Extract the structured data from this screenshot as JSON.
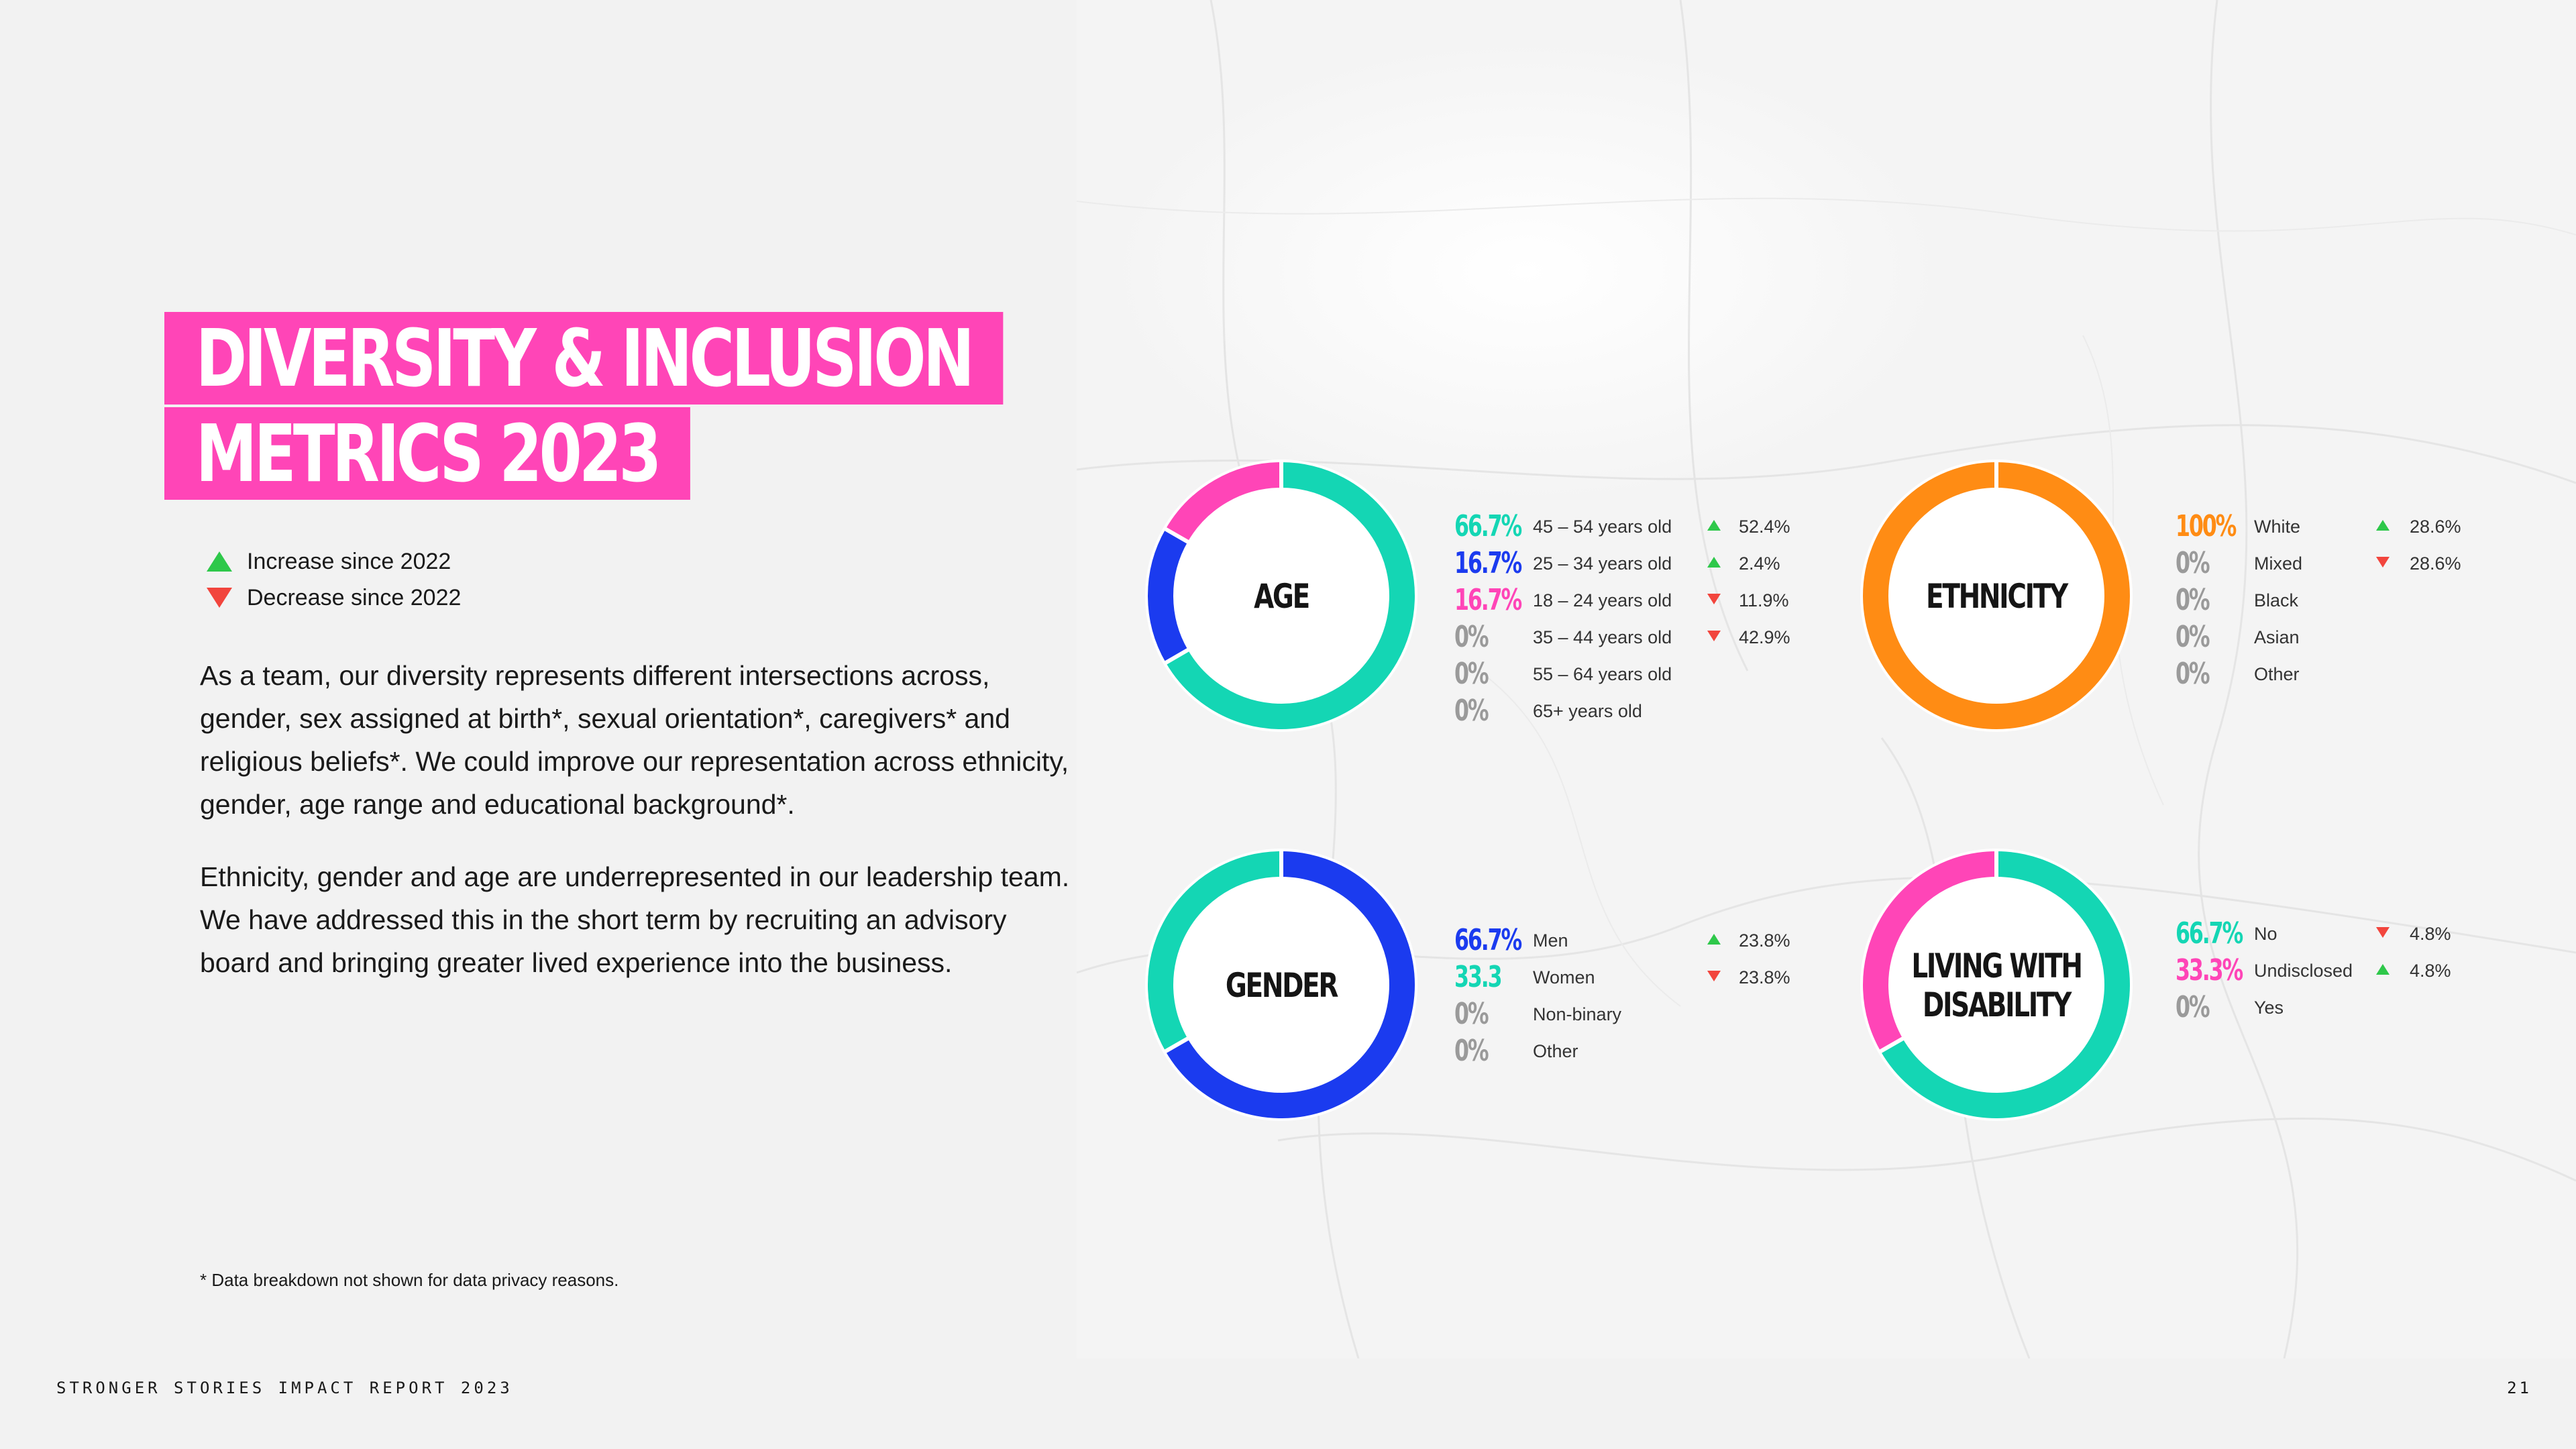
{
  "title": {
    "line1": "DIVERSITY & INCLUSION",
    "line2": "METRICS 2023"
  },
  "legend": {
    "increase": "Increase since 2022",
    "decrease": "Decrease since 2022"
  },
  "paragraphs": {
    "p1": "As a team, our diversity represents different intersections across, gender, sex assigned at birth*, sexual orientation*, caregivers* and religious beliefs*. We could improve our representation across ethnicity, gender, age range and educational background*.",
    "p2": "Ethnicity, gender and age are underrepresented in our leadership team. We have addressed this in the short term by recruiting an advisory board and bringing greater lived experience into the business."
  },
  "footnote": "* Data breakdown not shown for data privacy reasons.",
  "footer": {
    "left": "STRONGER STORIES IMPACT REPORT 2023",
    "page": "21"
  },
  "colors": {
    "teal": "#14d6b4",
    "blue": "#1b3bef",
    "pink": "#ff45b7",
    "orange": "#ff8c14",
    "grey": "#9a9a9a",
    "up": "#2ec84a",
    "down": "#f2453d"
  },
  "chart_data": [
    {
      "type": "pie",
      "center_label": [
        "AGE"
      ],
      "slices": [
        {
          "label": "45 – 54 years old",
          "display": "66.7%",
          "value": 66.7,
          "color": "#14d6b4",
          "change": "52.4%",
          "direction": "up"
        },
        {
          "label": "25 – 34 years old",
          "display": "16.7%",
          "value": 16.7,
          "color": "#1b3bef",
          "change": "2.4%",
          "direction": "up"
        },
        {
          "label": "18 – 24 years old",
          "display": "16.7%",
          "value": 16.7,
          "color": "#ff45b7",
          "change": "11.9%",
          "direction": "down"
        },
        {
          "label": "35 – 44 years old",
          "display": "0%",
          "value": 0,
          "color": "#9a9a9a",
          "change": "42.9%",
          "direction": "down"
        },
        {
          "label": "55 – 64 years old",
          "display": "0%",
          "value": 0,
          "color": "#9a9a9a",
          "change": "",
          "direction": ""
        },
        {
          "label": "65+ years old",
          "display": "0%",
          "value": 0,
          "color": "#9a9a9a",
          "change": "",
          "direction": ""
        }
      ]
    },
    {
      "type": "pie",
      "center_label": [
        "ETHNICITY"
      ],
      "slices": [
        {
          "label": "White",
          "display": "100%",
          "value": 100,
          "color": "#ff8c14",
          "change": "28.6%",
          "direction": "up"
        },
        {
          "label": "Mixed",
          "display": "0%",
          "value": 0,
          "color": "#9a9a9a",
          "change": "28.6%",
          "direction": "down"
        },
        {
          "label": "Black",
          "display": "0%",
          "value": 0,
          "color": "#9a9a9a",
          "change": "",
          "direction": ""
        },
        {
          "label": "Asian",
          "display": "0%",
          "value": 0,
          "color": "#9a9a9a",
          "change": "",
          "direction": ""
        },
        {
          "label": "Other",
          "display": "0%",
          "value": 0,
          "color": "#9a9a9a",
          "change": "",
          "direction": ""
        }
      ]
    },
    {
      "type": "pie",
      "center_label": [
        "GENDER"
      ],
      "slices": [
        {
          "label": "Men",
          "display": "66.7%",
          "value": 66.7,
          "color": "#1b3bef",
          "change": "23.8%",
          "direction": "up"
        },
        {
          "label": "Women",
          "display": "33.3",
          "value": 33.3,
          "color": "#14d6b4",
          "change": "23.8%",
          "direction": "down"
        },
        {
          "label": "Non-binary",
          "display": "0%",
          "value": 0,
          "color": "#9a9a9a",
          "change": "",
          "direction": ""
        },
        {
          "label": "Other",
          "display": "0%",
          "value": 0,
          "color": "#9a9a9a",
          "change": "",
          "direction": ""
        }
      ]
    },
    {
      "type": "pie",
      "center_label": [
        "LIVING WITH",
        "DISABILITY"
      ],
      "slices": [
        {
          "label": "No",
          "display": "66.7%",
          "value": 66.7,
          "color": "#14d6b4",
          "change": "4.8%",
          "direction": "down"
        },
        {
          "label": "Undisclosed",
          "display": "33.3%",
          "value": 33.3,
          "color": "#ff45b7",
          "change": "4.8%",
          "direction": "up"
        },
        {
          "label": "Yes",
          "display": "0%",
          "value": 0,
          "color": "#9a9a9a",
          "change": "",
          "direction": ""
        }
      ]
    }
  ]
}
